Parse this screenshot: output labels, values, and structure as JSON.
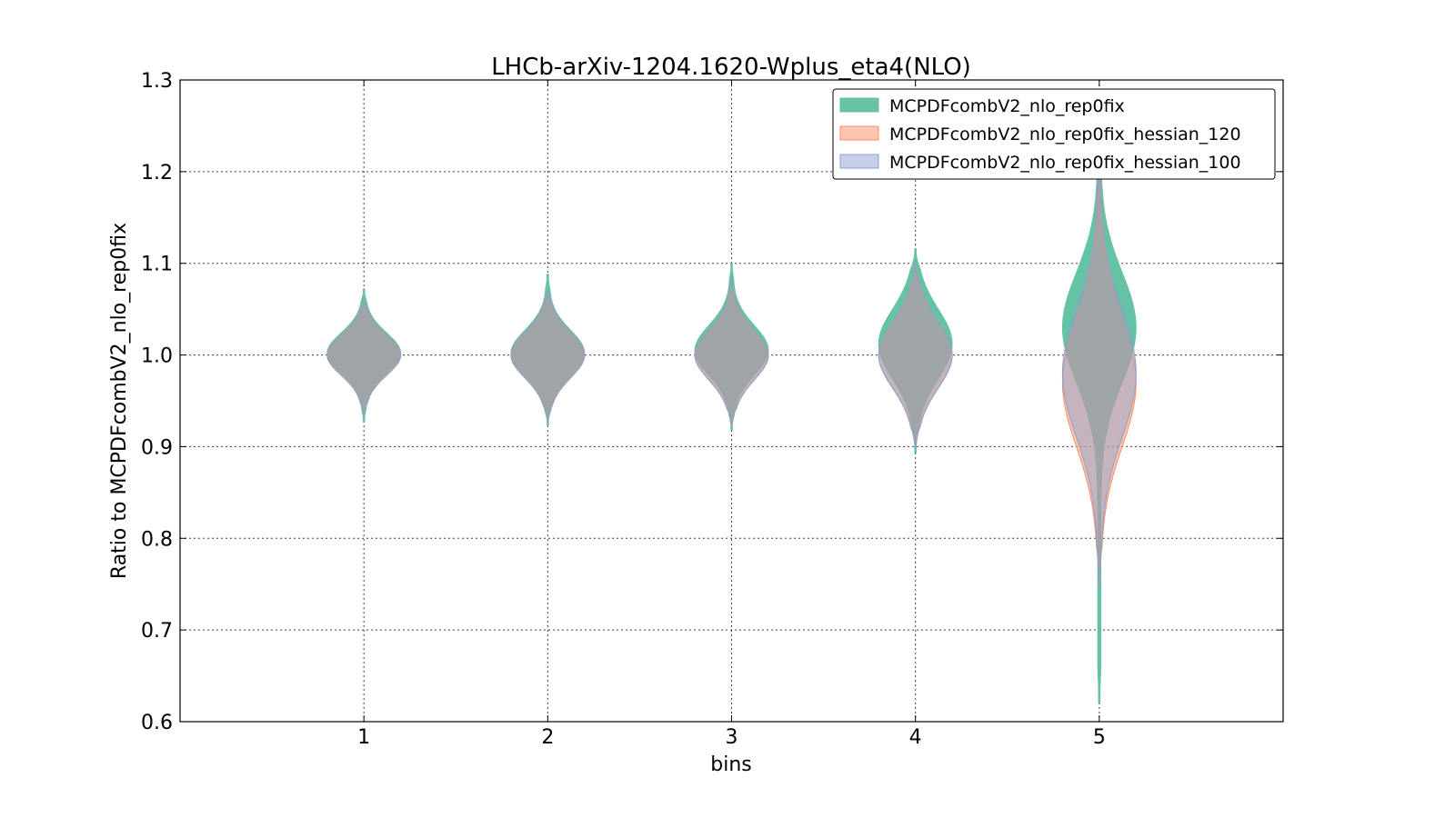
{
  "chart_data": {
    "type": "violin",
    "title": "LHCb-arXiv-1204.1620-Wplus_eta4(NLO)",
    "xlabel": "bins",
    "ylabel": "Ratio to MCPDFcombV2_nlo_rep0fix",
    "categories": [
      1,
      2,
      3,
      4,
      5
    ],
    "xlim": [
      0,
      6
    ],
    "ylim": [
      0.6,
      1.3
    ],
    "yticks": [
      "0.6",
      "0.7",
      "0.8",
      "0.9",
      "1.0",
      "1.1",
      "1.2",
      "1.3"
    ],
    "xticks": [
      "1",
      "2",
      "3",
      "4",
      "5"
    ],
    "grid": true,
    "legend_position": "top-right",
    "series": [
      {
        "name": "MCPDFcombV2_nlo_rep0fix",
        "color": "#66c2a5",
        "violins": [
          {
            "bin": 1,
            "min": 0.927,
            "max": 1.072,
            "center": 1.0,
            "peak": 1.002,
            "spread": 0.022
          },
          {
            "bin": 2,
            "min": 0.924,
            "max": 1.088,
            "center": 1.0,
            "peak": 1.002,
            "spread": 0.025
          },
          {
            "bin": 3,
            "min": 0.918,
            "max": 1.1,
            "center": 1.0,
            "peak": 1.005,
            "spread": 0.027
          },
          {
            "bin": 4,
            "min": 0.893,
            "max": 1.116,
            "center": 1.0,
            "peak": 1.012,
            "spread": 0.038
          },
          {
            "bin": 5,
            "min": 0.62,
            "max": 1.24,
            "center": 1.0,
            "peak": 1.03,
            "spread": 0.06
          }
        ]
      },
      {
        "name": "MCPDFcombV2_nlo_rep0fix_hessian_120",
        "color": "#fc8d62",
        "violins": [
          {
            "bin": 1,
            "min": 0.935,
            "max": 1.06,
            "center": 1.0,
            "peak": 1.0,
            "spread": 0.022
          },
          {
            "bin": 2,
            "min": 0.93,
            "max": 1.07,
            "center": 1.0,
            "peak": 1.0,
            "spread": 0.025
          },
          {
            "bin": 3,
            "min": 0.925,
            "max": 1.08,
            "center": 1.0,
            "peak": 1.0,
            "spread": 0.027
          },
          {
            "bin": 4,
            "min": 0.9,
            "max": 1.1,
            "center": 1.0,
            "peak": 1.0,
            "spread": 0.036
          },
          {
            "bin": 5,
            "min": 0.75,
            "max": 1.22,
            "center": 1.0,
            "peak": 0.97,
            "spread": 0.07
          }
        ]
      },
      {
        "name": "MCPDFcombV2_nlo_rep0fix_hessian_100",
        "color": "#8da0cb",
        "violins": [
          {
            "bin": 1,
            "min": 0.935,
            "max": 1.06,
            "center": 1.0,
            "peak": 1.0,
            "spread": 0.022
          },
          {
            "bin": 2,
            "min": 0.93,
            "max": 1.07,
            "center": 1.0,
            "peak": 1.0,
            "spread": 0.025
          },
          {
            "bin": 3,
            "min": 0.925,
            "max": 1.08,
            "center": 1.0,
            "peak": 1.0,
            "spread": 0.027
          },
          {
            "bin": 4,
            "min": 0.9,
            "max": 1.1,
            "center": 1.0,
            "peak": 1.0,
            "spread": 0.036
          },
          {
            "bin": 5,
            "min": 0.75,
            "max": 1.22,
            "center": 1.0,
            "peak": 0.98,
            "spread": 0.07
          }
        ]
      }
    ]
  }
}
